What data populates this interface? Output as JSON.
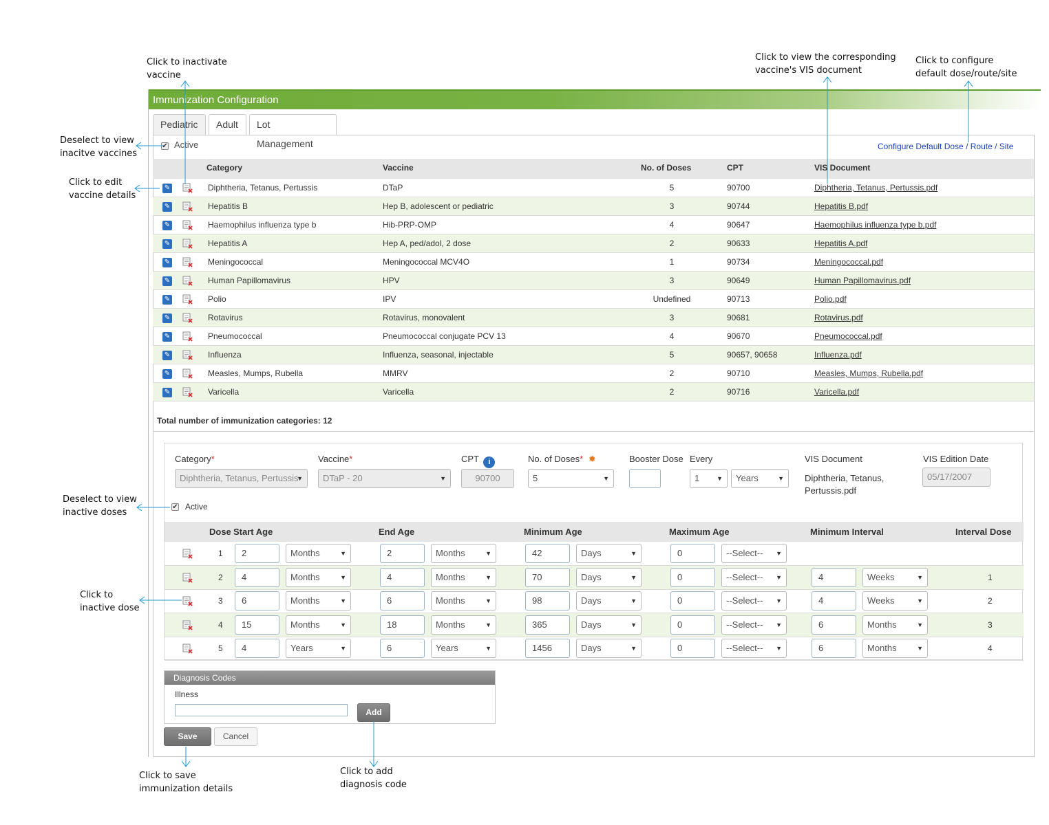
{
  "annotations": {
    "inactivate_vaccine": "Click to inactivate\nvaccine",
    "view_inactive_vaccines": "Deselect to view\ninacitve vaccines",
    "edit_vaccine": "Click to edit\nvaccine details",
    "view_vis": "Click to view the corresponding\nvaccine's VIS document",
    "configure_default": "Click to configure\ndefault dose/route/site",
    "view_inactive_doses": "Deselect to view\ninactive doses",
    "inactive_dose": "Click to\ninactive dose",
    "save": "Click to save\nimmunization details",
    "add_diag": "Click to add\ndiagnosis code"
  },
  "app": {
    "title": "Immunization Configuration",
    "tabs": [
      "Pediatric",
      "Adult",
      "Lot Management"
    ],
    "active_label": "Active",
    "configure_link": "Configure Default Dose / Route / Site",
    "table": {
      "headers": [
        "Category",
        "Vaccine",
        "No. of Doses",
        "CPT",
        "VIS Document"
      ],
      "rows": [
        {
          "category": "Diphtheria, Tetanus, Pertussis",
          "vaccine": "DTaP",
          "doses": "5",
          "cpt": "90700",
          "vis": "Diphtheria, Tetanus, Pertussis.pdf"
        },
        {
          "category": "Hepatitis B",
          "vaccine": "Hep B, adolescent or pediatric",
          "doses": "3",
          "cpt": "90744",
          "vis": "Hepatitis B.pdf"
        },
        {
          "category": "Haemophilus influenza type b",
          "vaccine": "Hib-PRP-OMP",
          "doses": "4",
          "cpt": "90647",
          "vis": "Haemophilus influenza type b.pdf"
        },
        {
          "category": "Hepatitis A",
          "vaccine": "Hep A, ped/adol, 2 dose",
          "doses": "2",
          "cpt": "90633",
          "vis": "Hepatitis A.pdf"
        },
        {
          "category": "Meningococcal",
          "vaccine": "Meningococcal MCV4O",
          "doses": "1",
          "cpt": "90734",
          "vis": "Meningococcal.pdf"
        },
        {
          "category": "Human Papillomavirus",
          "vaccine": "HPV",
          "doses": "3",
          "cpt": "90649",
          "vis": "Human Papillomavirus.pdf"
        },
        {
          "category": "Polio",
          "vaccine": "IPV",
          "doses": "Undefined",
          "cpt": "90713",
          "vis": "Polio.pdf"
        },
        {
          "category": "Rotavirus",
          "vaccine": "Rotavirus, monovalent",
          "doses": "3",
          "cpt": "90681",
          "vis": "Rotavirus.pdf"
        },
        {
          "category": "Pneumococcal",
          "vaccine": "Pneumococcal conjugate PCV 13",
          "doses": "4",
          "cpt": "90670",
          "vis": "Pneumococcal.pdf"
        },
        {
          "category": "Influenza",
          "vaccine": "Influenza, seasonal, injectable",
          "doses": "5",
          "cpt": "90657, 90658",
          "vis": "Influenza.pdf"
        },
        {
          "category": "Measles, Mumps, Rubella",
          "vaccine": "MMRV",
          "doses": "2",
          "cpt": "90710",
          "vis": "Measles, Mumps, Rubella.pdf"
        },
        {
          "category": "Varicella",
          "vaccine": "Varicella",
          "doses": "2",
          "cpt": "90716",
          "vis": "Varicella.pdf"
        }
      ]
    },
    "total_label": "Total number of immunization categories: 12",
    "edit": {
      "category_label": "Category",
      "category_value": "Diphtheria, Tetanus, Pertussis",
      "vaccine_label": "Vaccine",
      "vaccine_value": "DTaP - 20",
      "cpt_label": "CPT",
      "cpt_value": "90700",
      "doses_label": "No. of Doses",
      "doses_value": "5",
      "booster_label": "Booster Dose",
      "every_label": "Every",
      "every_num": "1",
      "every_unit": "Years",
      "vis_label": "VIS Document",
      "vis_link": "Diphtheria, Tetanus,\nPertussis.pdf",
      "vis_date_label": "VIS Edition Date",
      "vis_date_value": "05/17/2007",
      "active_label": "Active",
      "dose_headers": [
        "Dose",
        "Start Age",
        "End Age",
        "Minimum Age",
        "Maximum Age",
        "Minimum Interval",
        "Interval Dose"
      ],
      "doses": [
        {
          "num": "1",
          "start": "2",
          "start_unit": "Months",
          "end": "2",
          "end_unit": "Months",
          "min": "42",
          "min_unit": "Days",
          "max": "0",
          "max_unit": "--Select--",
          "interval": "",
          "interval_unit": "",
          "interval_dose": ""
        },
        {
          "num": "2",
          "start": "4",
          "start_unit": "Months",
          "end": "4",
          "end_unit": "Months",
          "min": "70",
          "min_unit": "Days",
          "max": "0",
          "max_unit": "--Select--",
          "interval": "4",
          "interval_unit": "Weeks",
          "interval_dose": "1"
        },
        {
          "num": "3",
          "start": "6",
          "start_unit": "Months",
          "end": "6",
          "end_unit": "Months",
          "min": "98",
          "min_unit": "Days",
          "max": "0",
          "max_unit": "--Select--",
          "interval": "4",
          "interval_unit": "Weeks",
          "interval_dose": "2"
        },
        {
          "num": "4",
          "start": "15",
          "start_unit": "Months",
          "end": "18",
          "end_unit": "Months",
          "min": "365",
          "min_unit": "Days",
          "max": "0",
          "max_unit": "--Select--",
          "interval": "6",
          "interval_unit": "Months",
          "interval_dose": "3"
        },
        {
          "num": "5",
          "start": "4",
          "start_unit": "Years",
          "end": "6",
          "end_unit": "Years",
          "min": "1456",
          "min_unit": "Days",
          "max": "0",
          "max_unit": "--Select--",
          "interval": "6",
          "interval_unit": "Months",
          "interval_dose": "4"
        }
      ]
    },
    "diagnosis": {
      "title": "Diagnosis Codes",
      "illness_label": "Illness",
      "add_label": "Add"
    },
    "save_label": "Save",
    "cancel_label": "Cancel"
  }
}
